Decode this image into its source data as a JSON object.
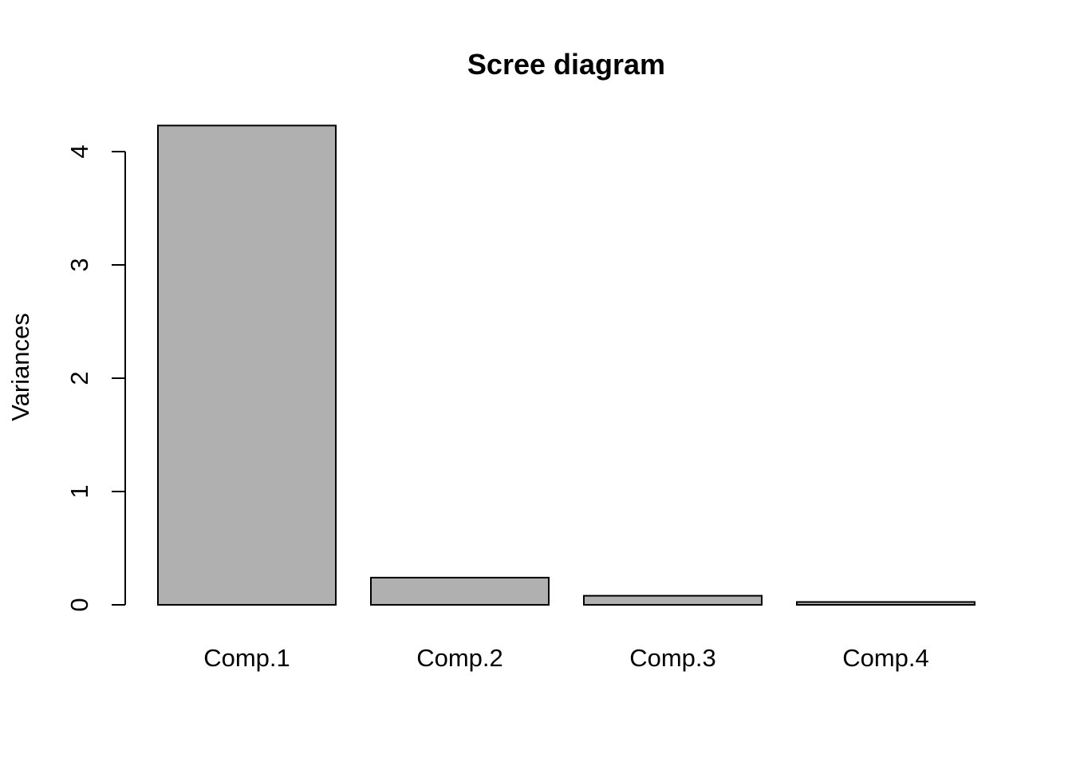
{
  "chart_data": {
    "type": "bar",
    "title": "Scree diagram",
    "xlabel": "",
    "ylabel": "Variances",
    "categories": [
      "Comp.1",
      "Comp.2",
      "Comp.3",
      "Comp.4"
    ],
    "values": [
      4.23,
      0.24,
      0.08,
      0.025
    ],
    "ylim": [
      0,
      4
    ],
    "yticks": [
      "0",
      "1",
      "2",
      "3",
      "4"
    ],
    "bar_color": "#b0b0b0",
    "bar_border_color": "#000000",
    "grid": false
  }
}
